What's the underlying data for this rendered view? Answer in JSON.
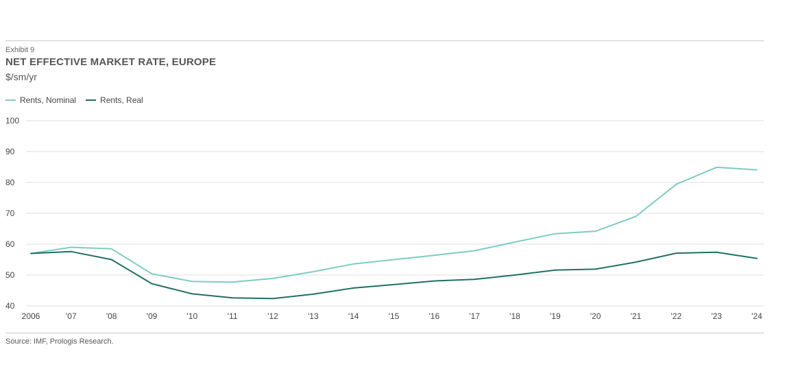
{
  "header": {
    "exhibit": "Exhibit 9",
    "title": "NET EFFECTIVE MARKET RATE, EUROPE",
    "subtitle": "$/sm/yr"
  },
  "footer": {
    "source": "Source: IMF, Prologis Research."
  },
  "colors": {
    "nominal": "#7ccbc3",
    "real": "#1f6f66",
    "grid": "#dddddd",
    "rule": "#c8c8c8"
  },
  "chart_data": {
    "type": "line",
    "categories": [
      "2006",
      "'07",
      "'08",
      "'09",
      "'10",
      "'11",
      "'12",
      "'13",
      "'14",
      "'15",
      "'16",
      "'17",
      "'18",
      "'19",
      "'20",
      "'21",
      "'22",
      "'23",
      "'24"
    ],
    "series": [
      {
        "name": "Rents, Nominal",
        "color": "#7ccbc3",
        "values": [
          57.0,
          59.0,
          58.5,
          50.4,
          47.9,
          47.7,
          48.9,
          51.1,
          53.6,
          55.0,
          56.4,
          57.9,
          60.7,
          63.4,
          64.2,
          69.0,
          79.4,
          84.9,
          84.1
        ]
      },
      {
        "name": "Rents, Real",
        "color": "#1f6f66",
        "values": [
          57.0,
          57.6,
          55.0,
          47.2,
          43.9,
          42.6,
          42.4,
          43.8,
          45.8,
          46.9,
          48.1,
          48.6,
          50.0,
          51.6,
          51.9,
          54.2,
          57.1,
          57.4,
          55.4
        ]
      }
    ],
    "yticks": [
      40,
      50,
      60,
      70,
      80,
      90,
      100
    ],
    "ylim": [
      40,
      100
    ],
    "grid": true,
    "legend": "top-left"
  }
}
